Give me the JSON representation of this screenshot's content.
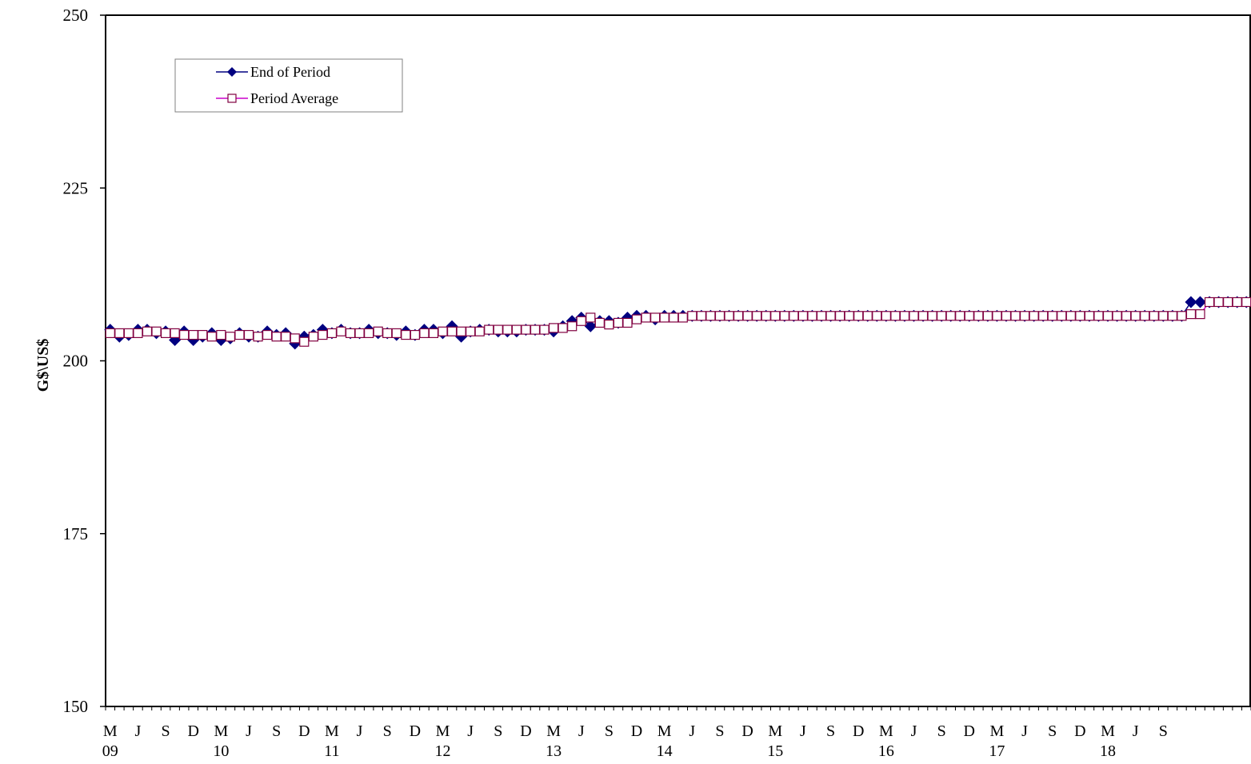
{
  "chart_data": {
    "type": "line",
    "title": "",
    "xlabel": "",
    "ylabel": "G$\\US$",
    "ylim": [
      150,
      250
    ],
    "yticks": [
      150,
      175,
      200,
      225,
      250
    ],
    "grid": false,
    "legend_position": "top-left",
    "x_tick_labels": [
      "M",
      "J",
      "S",
      "D",
      "M",
      "J",
      "S",
      "D",
      "M",
      "J",
      "S",
      "D",
      "M",
      "J",
      "S",
      "D",
      "M",
      "J",
      "S",
      "D",
      "M",
      "J",
      "S",
      "D",
      "M",
      "J",
      "S",
      "D",
      "M",
      "J",
      "S",
      "D",
      "M",
      "J",
      "S",
      "D",
      "M",
      "J",
      "S"
    ],
    "year_labels": [
      "09",
      "10",
      "11",
      "12",
      "13",
      "14",
      "15",
      "16",
      "17",
      "18"
    ],
    "series": [
      {
        "name": "End of Period",
        "color": "#000080",
        "marker": "diamond",
        "values": [
          204.5,
          203.5,
          203.75,
          204.5,
          204.5,
          204,
          204.25,
          203,
          204.25,
          203,
          203.5,
          204,
          203,
          203.25,
          204,
          203.5,
          203.5,
          204.25,
          203.75,
          204,
          202.5,
          203.5,
          203.75,
          204.5,
          204,
          204.5,
          204,
          204,
          204.5,
          204,
          204,
          203.75,
          204.25,
          203.75,
          204.5,
          204.5,
          204,
          205,
          203.5,
          204.25,
          204.5,
          204.5,
          204.25,
          204.25,
          204.25,
          204.5,
          204.5,
          204.5,
          204.25,
          205,
          205.75,
          206.25,
          205,
          205.75,
          205.75,
          205.5,
          206.25,
          206.5,
          206.5,
          206,
          206.5,
          206.5,
          206.5,
          206.5,
          206.5,
          206.5,
          206.5,
          206.5,
          206.5,
          206.5,
          206.5,
          206.5,
          206.5,
          206.5,
          206.5,
          206.5,
          206.5,
          206.5,
          206.5,
          206.5,
          206.5,
          206.5,
          206.5,
          206.5,
          206.5,
          206.5,
          206.5,
          206.5,
          206.5,
          206.5,
          206.5,
          206.5,
          206.5,
          206.5,
          206.5,
          206.5,
          206.5,
          206.5,
          206.5,
          206.5,
          206.5,
          206.5,
          206.5,
          206.5,
          206.5,
          206.5,
          206.5,
          206.5,
          206.5,
          206.5,
          206.5,
          206.5,
          206.5,
          206.5,
          206.5,
          206.5,
          206.5,
          208.5,
          208.5,
          208.5,
          208.5,
          208.5,
          208.5,
          208.5
        ]
      },
      {
        "name": "Period Average",
        "color": "#cc00cc",
        "marker": "square",
        "values": [
          204,
          204,
          204,
          204,
          204.25,
          204.25,
          204,
          204,
          203.75,
          203.75,
          203.75,
          203.5,
          203.75,
          203.5,
          203.75,
          203.75,
          203.5,
          203.75,
          203.5,
          203.5,
          203.25,
          202.75,
          203.5,
          203.75,
          204,
          204.25,
          204,
          204,
          204,
          204.25,
          204,
          204,
          203.75,
          203.75,
          204,
          204,
          204.25,
          204.25,
          204.25,
          204.25,
          204.25,
          204.5,
          204.5,
          204.5,
          204.5,
          204.5,
          204.5,
          204.5,
          204.75,
          204.75,
          205,
          205.75,
          206.25,
          205.5,
          205.25,
          205.5,
          205.5,
          206,
          206.25,
          206.25,
          206.25,
          206.25,
          206.25,
          206.5,
          206.5,
          206.5,
          206.5,
          206.5,
          206.5,
          206.5,
          206.5,
          206.5,
          206.5,
          206.5,
          206.5,
          206.5,
          206.5,
          206.5,
          206.5,
          206.5,
          206.5,
          206.5,
          206.5,
          206.5,
          206.5,
          206.5,
          206.5,
          206.5,
          206.5,
          206.5,
          206.5,
          206.5,
          206.5,
          206.5,
          206.5,
          206.5,
          206.5,
          206.5,
          206.5,
          206.5,
          206.5,
          206.5,
          206.5,
          206.5,
          206.5,
          206.5,
          206.5,
          206.5,
          206.5,
          206.5,
          206.5,
          206.5,
          206.5,
          206.5,
          206.5,
          206.5,
          206.5,
          206.75,
          206.75,
          208.5,
          208.5,
          208.5,
          208.5,
          208.5,
          208.5
        ]
      }
    ]
  }
}
